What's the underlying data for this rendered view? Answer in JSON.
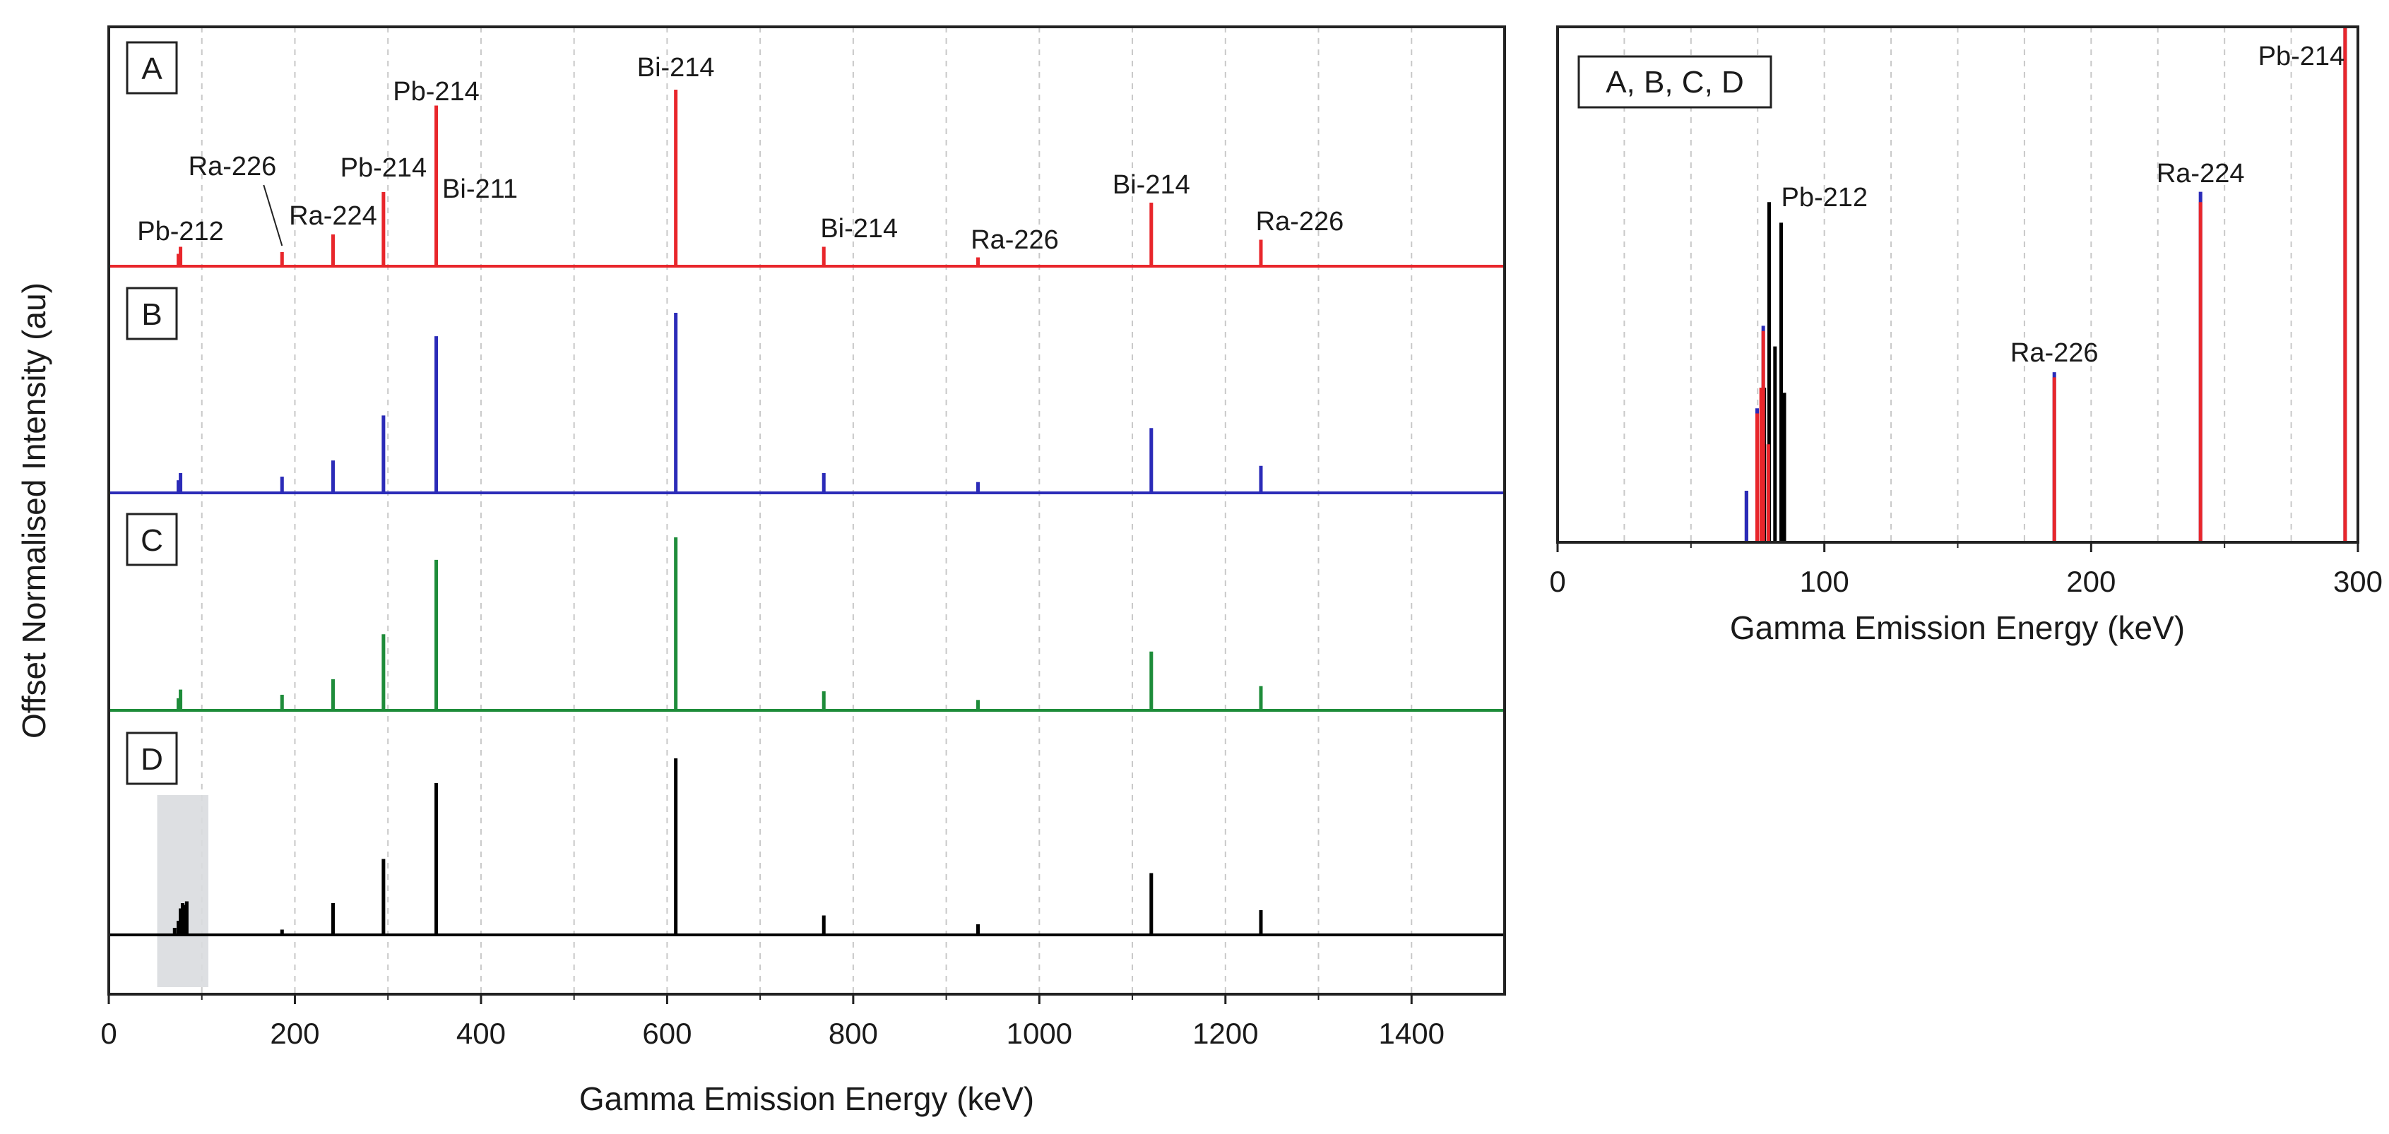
{
  "chart_data": [
    {
      "type": "line",
      "name": "main-stacked-spectra",
      "xlabel": "Gamma Emission Energy (keV)",
      "ylabel": "Offset Normalised Intensity (au)",
      "xlim": [
        0,
        1500
      ],
      "xticks": [
        0,
        200,
        400,
        600,
        800,
        1000,
        1200,
        1400
      ],
      "grid": "vertical dashed every 100 keV",
      "highlight_region": [
        52,
        107
      ],
      "panels": [
        {
          "tag": "A",
          "color": "#e8262b",
          "peaks": [
            {
              "x": 74.8,
              "y": 0.07
            },
            {
              "x": 77.1,
              "y": 0.11
            },
            {
              "x": 186.2,
              "y": 0.08
            },
            {
              "x": 241.0,
              "y": 0.18
            },
            {
              "x": 295.2,
              "y": 0.42
            },
            {
              "x": 351.9,
              "y": 0.91
            },
            {
              "x": 609.3,
              "y": 1.0
            },
            {
              "x": 768.4,
              "y": 0.11
            },
            {
              "x": 934.1,
              "y": 0.05
            },
            {
              "x": 1120.3,
              "y": 0.36
            },
            {
              "x": 1238.1,
              "y": 0.15
            }
          ],
          "labels": [
            {
              "text": "Pb-212",
              "x": 77.1
            },
            {
              "text": "Ra-226",
              "x": 186.2
            },
            {
              "text": "Ra-224",
              "x": 241.0
            },
            {
              "text": "Pb-214",
              "x": 295.2
            },
            {
              "text": "Pb-214",
              "x": 351.9
            },
            {
              "text": "Bi-211",
              "x": 351.9
            },
            {
              "text": "Bi-214",
              "x": 609.3
            },
            {
              "text": "Bi-214",
              "x": 768.4
            },
            {
              "text": "Ra-226",
              "x": 934.1
            },
            {
              "text": "Bi-214",
              "x": 1120.3
            },
            {
              "text": "Ra-226",
              "x": 1238.1
            }
          ]
        },
        {
          "tag": "B",
          "color": "#2b2bb8",
          "peaks": [
            {
              "x": 74.8,
              "y": 0.07
            },
            {
              "x": 77.1,
              "y": 0.11
            },
            {
              "x": 186.2,
              "y": 0.09
            },
            {
              "x": 241.0,
              "y": 0.18
            },
            {
              "x": 295.2,
              "y": 0.43
            },
            {
              "x": 351.9,
              "y": 0.87
            },
            {
              "x": 609.3,
              "y": 1.0
            },
            {
              "x": 768.4,
              "y": 0.11
            },
            {
              "x": 934.1,
              "y": 0.06
            },
            {
              "x": 1120.3,
              "y": 0.36
            },
            {
              "x": 1238.1,
              "y": 0.15
            }
          ]
        },
        {
          "tag": "C",
          "color": "#1e8c3a",
          "peaks": [
            {
              "x": 74.8,
              "y": 0.07
            },
            {
              "x": 77.1,
              "y": 0.12
            },
            {
              "x": 186.2,
              "y": 0.09
            },
            {
              "x": 241.0,
              "y": 0.18
            },
            {
              "x": 295.2,
              "y": 0.44
            },
            {
              "x": 351.9,
              "y": 0.87
            },
            {
              "x": 609.3,
              "y": 1.0
            },
            {
              "x": 768.4,
              "y": 0.11
            },
            {
              "x": 934.1,
              "y": 0.06
            },
            {
              "x": 1120.3,
              "y": 0.34
            },
            {
              "x": 1238.1,
              "y": 0.14
            }
          ]
        },
        {
          "tag": "D",
          "color": "#000000",
          "peaks": [
            {
              "x": 70.8,
              "y": 0.04
            },
            {
              "x": 74.8,
              "y": 0.08
            },
            {
              "x": 77.1,
              "y": 0.15
            },
            {
              "x": 79.3,
              "y": 0.18
            },
            {
              "x": 81.5,
              "y": 0.17
            },
            {
              "x": 83.8,
              "y": 0.19
            },
            {
              "x": 186.2,
              "y": 0.03
            },
            {
              "x": 241.0,
              "y": 0.18
            },
            {
              "x": 295.2,
              "y": 0.43
            },
            {
              "x": 351.9,
              "y": 0.86
            },
            {
              "x": 609.3,
              "y": 1.0
            },
            {
              "x": 768.4,
              "y": 0.11
            },
            {
              "x": 934.1,
              "y": 0.06
            },
            {
              "x": 1120.3,
              "y": 0.35
            },
            {
              "x": 1238.1,
              "y": 0.14
            }
          ]
        }
      ]
    },
    {
      "type": "line",
      "name": "inset-low-energy",
      "tag": "A, B, C, D",
      "xlabel": "Gamma Emission Energy (keV)",
      "xlim": [
        0,
        300
      ],
      "xticks": [
        0,
        100,
        200,
        300
      ],
      "ylim": [
        0,
        1
      ],
      "grid": "vertical dashed every 25 keV",
      "series": [
        {
          "name": "D",
          "color": "#000000",
          "peaks": [
            {
              "x": 70.8,
              "y": 0.1
            },
            {
              "x": 77.5,
              "y": 0.3
            },
            {
              "x": 79.3,
              "y": 0.66
            },
            {
              "x": 81.5,
              "y": 0.38
            },
            {
              "x": 83.8,
              "y": 0.62
            },
            {
              "x": 85.0,
              "y": 0.29
            }
          ]
        },
        {
          "name": "B",
          "color": "#2b2bb8",
          "peaks": [
            {
              "x": 70.8,
              "y": 0.1
            },
            {
              "x": 74.8,
              "y": 0.26
            },
            {
              "x": 77.1,
              "y": 0.42
            },
            {
              "x": 186.2,
              "y": 0.33
            },
            {
              "x": 241.0,
              "y": 0.68
            },
            {
              "x": 295.2,
              "y": 1.0
            }
          ]
        },
        {
          "name": "A/C",
          "color": "#e8262b",
          "peaks": [
            {
              "x": 74.8,
              "y": 0.25
            },
            {
              "x": 76.3,
              "y": 0.3
            },
            {
              "x": 77.1,
              "y": 0.41
            },
            {
              "x": 79.0,
              "y": 0.19
            },
            {
              "x": 186.2,
              "y": 0.32
            },
            {
              "x": 241.0,
              "y": 0.66
            },
            {
              "x": 295.2,
              "y": 1.0
            }
          ]
        }
      ],
      "labels": [
        {
          "text": "Pb-212",
          "x": 83.8
        },
        {
          "text": "Ra-226",
          "x": 186.2
        },
        {
          "text": "Ra-224",
          "x": 241.0
        },
        {
          "text": "Pb-214",
          "x": 295.2
        }
      ]
    }
  ]
}
